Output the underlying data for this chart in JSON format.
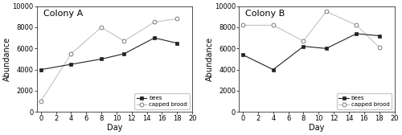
{
  "colony_a": {
    "title": "Colony A",
    "bees_x": [
      0,
      4,
      8,
      11,
      15,
      18
    ],
    "bees_y": [
      4000,
      4500,
      5000,
      5500,
      7000,
      6500
    ],
    "brood_x": [
      0,
      4,
      8,
      11,
      15,
      18
    ],
    "brood_y": [
      1000,
      5500,
      8000,
      6700,
      8500,
      8800
    ]
  },
  "colony_b": {
    "title": "Colony B",
    "bees_x": [
      0,
      4,
      8,
      11,
      15,
      18
    ],
    "bees_y": [
      5400,
      4000,
      6200,
      6000,
      7400,
      7200
    ],
    "brood_x": [
      0,
      4,
      8,
      11,
      15,
      18
    ],
    "brood_y": [
      8200,
      8200,
      6700,
      9500,
      8200,
      6100
    ]
  },
  "ylabel": "Abundance",
  "xlabel": "Day",
  "ylim": [
    0,
    10000
  ],
  "xlim": [
    -0.5,
    20
  ],
  "yticks": [
    0,
    2000,
    4000,
    6000,
    8000,
    10000
  ],
  "xticks": [
    0,
    2,
    4,
    6,
    8,
    10,
    12,
    14,
    16,
    18,
    20
  ],
  "bees_color": "#222222",
  "brood_line_color": "#bbbbbb",
  "brood_marker_edge": "#666666",
  "background_color": "#ffffff",
  "legend_bees": "bees",
  "legend_brood": "capped brood",
  "title_fontsize": 8,
  "label_fontsize": 7,
  "tick_fontsize": 6
}
